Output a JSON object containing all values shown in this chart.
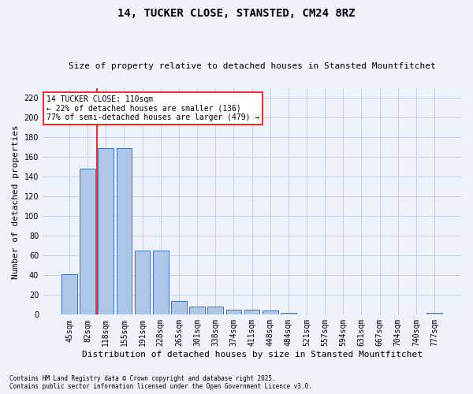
{
  "title": "14, TUCKER CLOSE, STANSTED, CM24 8RZ",
  "subtitle": "Size of property relative to detached houses in Stansted Mountfitchet",
  "xlabel": "Distribution of detached houses by size in Stansted Mountfitchet",
  "ylabel": "Number of detached properties",
  "categories": [
    "45sqm",
    "82sqm",
    "118sqm",
    "155sqm",
    "191sqm",
    "228sqm",
    "265sqm",
    "301sqm",
    "338sqm",
    "374sqm",
    "411sqm",
    "448sqm",
    "484sqm",
    "521sqm",
    "557sqm",
    "594sqm",
    "631sqm",
    "667sqm",
    "704sqm",
    "740sqm",
    "777sqm"
  ],
  "values": [
    41,
    148,
    169,
    169,
    65,
    65,
    14,
    8,
    8,
    5,
    5,
    4,
    2,
    0,
    0,
    0,
    0,
    0,
    0,
    0,
    2
  ],
  "bar_color": "#aec6e8",
  "bar_edge_color": "#4472c4",
  "reference_line_color": "red",
  "reference_line_x": 1.5,
  "annotation_text": "14 TUCKER CLOSE: 110sqm\n← 22% of detached houses are smaller (136)\n77% of semi-detached houses are larger (479) →",
  "annotation_box_color": "white",
  "annotation_box_edge": "red",
  "ylim": [
    0,
    230
  ],
  "yticks": [
    0,
    20,
    40,
    60,
    80,
    100,
    120,
    140,
    160,
    180,
    200,
    220
  ],
  "footer1": "Contains HM Land Registry data © Crown copyright and database right 2025.",
  "footer2": "Contains public sector information licensed under the Open Government Licence v3.0.",
  "background_color": "#eef2fb",
  "grid_color": "#c8d0e8",
  "title_fontsize": 10,
  "subtitle_fontsize": 8,
  "tick_fontsize": 7,
  "label_fontsize": 8,
  "footer_fontsize": 5.5,
  "annotation_fontsize": 7
}
